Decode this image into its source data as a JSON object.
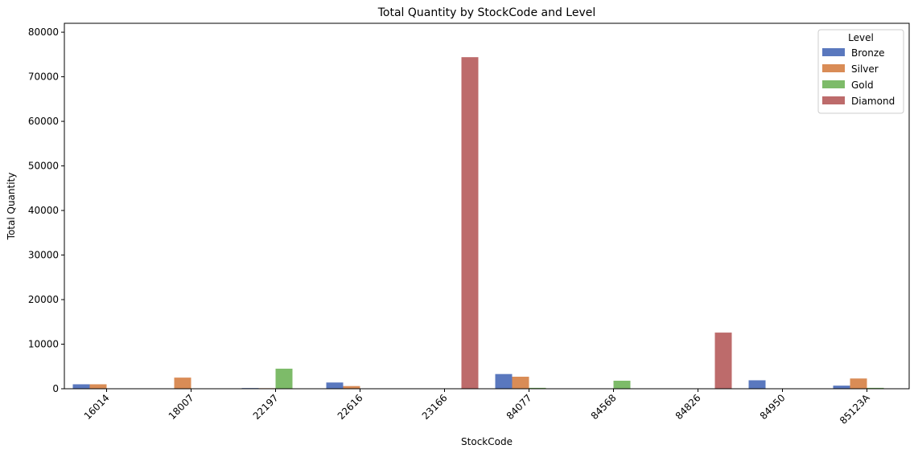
{
  "chart_data": {
    "type": "bar",
    "title": "Total Quantity by StockCode and Level",
    "xlabel": "StockCode",
    "ylabel": "Total Quantity",
    "ylim": [
      0,
      82000
    ],
    "yticks": [
      0,
      10000,
      20000,
      30000,
      40000,
      50000,
      60000,
      70000,
      80000
    ],
    "grid": false,
    "legend": {
      "title": "Level",
      "placement": "top-right"
    },
    "categories": [
      "16014",
      "18007",
      "22197",
      "22616",
      "23166",
      "84077",
      "84568",
      "84826",
      "84950",
      "85123A"
    ],
    "series": [
      {
        "name": "Bronze",
        "color": "#5a78be",
        "values": [
          1000,
          0,
          150,
          1400,
          0,
          3300,
          0,
          0,
          1900,
          700
        ]
      },
      {
        "name": "Silver",
        "color": "#d98c56",
        "values": [
          1000,
          2500,
          120,
          600,
          0,
          2700,
          0,
          0,
          0,
          2300
        ]
      },
      {
        "name": "Gold",
        "color": "#7dbb69",
        "values": [
          0,
          0,
          4500,
          0,
          0,
          200,
          1800,
          0,
          0,
          200
        ]
      },
      {
        "name": "Diamond",
        "color": "#bd6b6b",
        "values": [
          0,
          0,
          0,
          0,
          74400,
          0,
          0,
          12600,
          0,
          0
        ]
      }
    ]
  }
}
